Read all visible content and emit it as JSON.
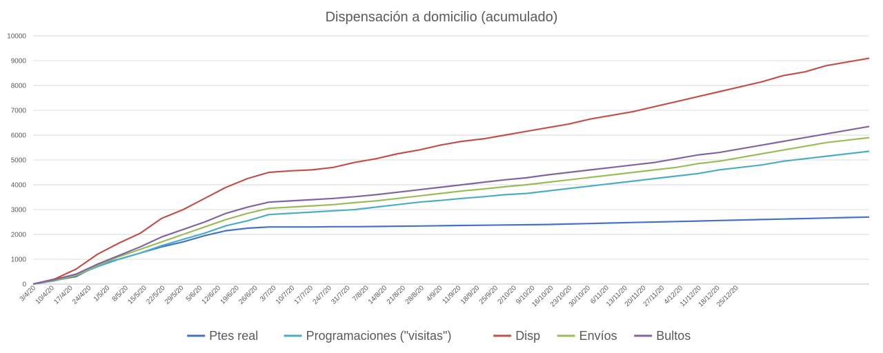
{
  "chart_data": {
    "type": "line",
    "title": "Dispensación a domicilio (acumulado)",
    "xlabel": "",
    "ylabel": "",
    "ylim": [
      0,
      10000
    ],
    "yticks": [
      "0",
      "1000",
      "2000",
      "3000",
      "4000",
      "5000",
      "6000",
      "7000",
      "8000",
      "9000",
      "10000"
    ],
    "x_tick_labels": [
      "3/4/20",
      "10/4/20",
      "17/4/20",
      "24/4/20",
      "1/5/20",
      "8/5/20",
      "15/5/20",
      "22/5/20",
      "29/5/20",
      "5/6/20",
      "12/6/20",
      "19/6/20",
      "26/6/20",
      "3/7/20",
      "10/7/20",
      "17/7/20",
      "24/7/20",
      "31/7/20",
      "7/8/20",
      "14/8/20",
      "21/8/20",
      "28/8/20",
      "4/9/20",
      "11/9/20",
      "18/9/20",
      "25/9/20",
      "2/10/20",
      "9/10/20",
      "16/10/20",
      "23/10/20",
      "30/10/20",
      "6/11/20",
      "13/11/20",
      "20/11/20",
      "27/11/20",
      "4/12/20",
      "11/12/20",
      "18/12/20",
      "25/12/20"
    ],
    "x_end": "31/12/20",
    "grid": true,
    "legend_position": "bottom",
    "series": [
      {
        "name": "Ptes real",
        "color": "#4472C4",
        "values": [
          0,
          150,
          300,
          750,
          1000,
          1250,
          1500,
          1700,
          1950,
          2150,
          2250,
          2300,
          2300,
          2300,
          2310,
          2310,
          2320,
          2330,
          2340,
          2350,
          2360,
          2370,
          2380,
          2390,
          2400,
          2420,
          2440,
          2460,
          2480,
          2500,
          2520,
          2540,
          2560,
          2580,
          2600,
          2620,
          2640,
          2660,
          2680,
          2700
        ]
      },
      {
        "name": "Programaciones (\"visitas\")",
        "color": "#4BACC6",
        "values": [
          0,
          130,
          350,
          700,
          1000,
          1250,
          1550,
          1800,
          2050,
          2350,
          2550,
          2800,
          2850,
          2900,
          2950,
          3000,
          3100,
          3200,
          3300,
          3370,
          3450,
          3520,
          3600,
          3650,
          3750,
          3850,
          3950,
          4050,
          4150,
          4250,
          4350,
          4450,
          4600,
          4700,
          4800,
          4950,
          5050,
          5150,
          5250,
          5350
        ]
      },
      {
        "name": "Disp",
        "color": "#C0504D",
        "values": [
          0,
          200,
          600,
          1200,
          1650,
          2050,
          2650,
          3000,
          3450,
          3900,
          4250,
          4500,
          4560,
          4600,
          4700,
          4900,
          5050,
          5250,
          5400,
          5600,
          5750,
          5850,
          6000,
          6150,
          6300,
          6450,
          6650,
          6800,
          6950,
          7150,
          7350,
          7550,
          7750,
          7950,
          8150,
          8400,
          8550,
          8800,
          8950,
          9100
        ]
      },
      {
        "name": "Envíos",
        "color": "#9BBB59",
        "values": [
          0,
          150,
          350,
          750,
          1100,
          1400,
          1700,
          2000,
          2300,
          2600,
          2850,
          3050,
          3100,
          3150,
          3200,
          3280,
          3350,
          3450,
          3550,
          3650,
          3750,
          3830,
          3920,
          4000,
          4100,
          4200,
          4300,
          4400,
          4500,
          4600,
          4700,
          4850,
          4950,
          5100,
          5250,
          5400,
          5550,
          5700,
          5800,
          5900
        ]
      },
      {
        "name": "Bultos",
        "color": "#8064A2",
        "values": [
          0,
          180,
          400,
          800,
          1150,
          1500,
          1900,
          2200,
          2500,
          2850,
          3100,
          3300,
          3350,
          3400,
          3450,
          3520,
          3600,
          3700,
          3800,
          3900,
          4000,
          4100,
          4200,
          4280,
          4400,
          4500,
          4600,
          4700,
          4800,
          4900,
          5050,
          5200,
          5300,
          5450,
          5600,
          5750,
          5900,
          6050,
          6200,
          6350
        ]
      }
    ]
  }
}
